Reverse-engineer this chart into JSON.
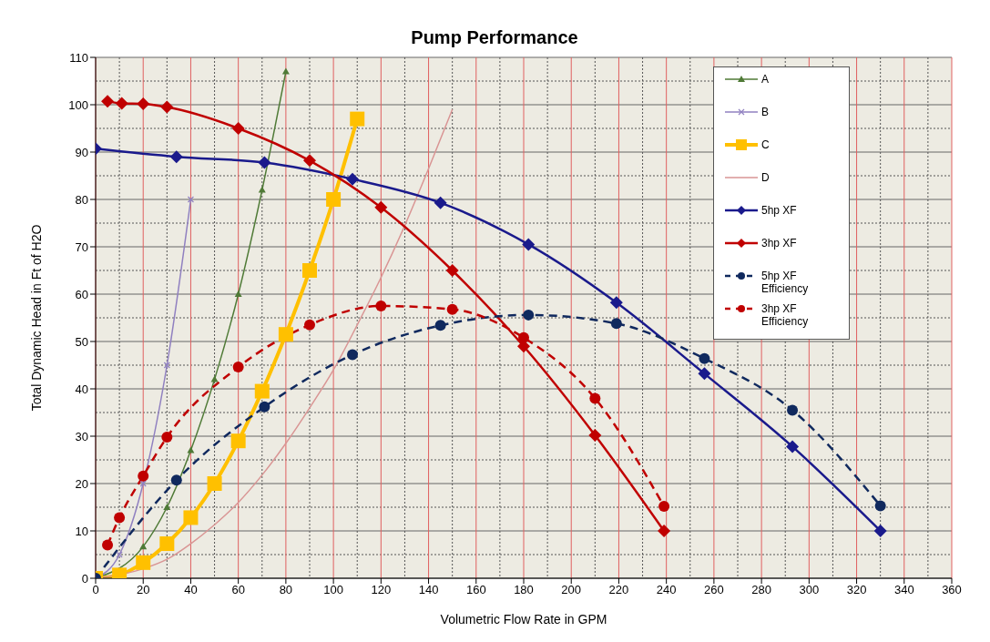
{
  "chart_data": {
    "type": "line",
    "title": "Pump Performance",
    "xlabel": "Volumetric Flow Rate in GPM",
    "ylabel": "Total Dynamic Head in Ft of H2O",
    "xlim": [
      0,
      360
    ],
    "xticks": [
      0,
      20,
      40,
      60,
      80,
      100,
      120,
      140,
      160,
      180,
      200,
      220,
      240,
      260,
      280,
      300,
      320,
      340,
      360
    ],
    "ylim": [
      0,
      110
    ],
    "yticks": [
      0,
      10,
      20,
      30,
      40,
      50,
      60,
      70,
      80,
      90,
      100,
      110
    ],
    "grid": true,
    "legend": "top right",
    "series": [
      {
        "name": "A",
        "color": "#4f7a36",
        "marker": "triangle",
        "line_style": "solid",
        "x": [
          0,
          20,
          30,
          40,
          50,
          60,
          70,
          80
        ],
        "values": [
          0,
          6.7,
          15,
          27,
          42,
          60,
          82,
          107
        ]
      },
      {
        "name": "B",
        "color": "#9080c0",
        "marker": "cross",
        "line_style": "solid",
        "x": [
          0,
          10,
          20,
          30,
          40
        ],
        "values": [
          0,
          5,
          20,
          45,
          80
        ]
      },
      {
        "name": "C",
        "color": "#ffc000",
        "marker": "square",
        "line_style": "solid",
        "x": [
          0,
          10,
          20,
          30,
          40,
          50,
          60,
          70,
          80,
          90,
          100,
          110
        ],
        "values": [
          0,
          0.7,
          3.3,
          7.3,
          12.8,
          20,
          29,
          39.5,
          51.5,
          65,
          80,
          97
        ]
      },
      {
        "name": "D",
        "color": "#d99594",
        "marker": "none",
        "line_style": "solid",
        "x": [
          0,
          20,
          30,
          40,
          50,
          60,
          70,
          80,
          90,
          100,
          110,
          120,
          130,
          140,
          150
        ],
        "values": [
          0,
          2,
          4,
          7.3,
          11.3,
          16,
          21.8,
          28.5,
          36,
          44,
          53.5,
          63.5,
          74.5,
          86.5,
          99
        ]
      },
      {
        "name": "5hp XF",
        "color": "#1a1a8c",
        "marker": "diamond",
        "line_style": "solid",
        "x": [
          0,
          34,
          71,
          108,
          145,
          182,
          219,
          256,
          293,
          330
        ],
        "values": [
          90.7,
          89,
          87.8,
          84.3,
          79.3,
          70.5,
          58.2,
          43.2,
          27.8,
          10
        ]
      },
      {
        "name": "3hp XF",
        "color": "#c00000",
        "marker": "diamond",
        "line_style": "solid",
        "x": [
          5,
          11,
          20,
          30,
          60,
          90,
          120,
          150,
          180,
          210,
          239
        ],
        "values": [
          100.7,
          100.3,
          100.2,
          99.5,
          95,
          88.2,
          78.3,
          65,
          49,
          30.2,
          10
        ]
      },
      {
        "name": "5hp XF Efficiency",
        "color": "#10295e",
        "marker": "circle",
        "line_style": "dashed",
        "x": [
          0,
          34,
          71,
          108,
          145,
          182,
          219,
          256,
          293,
          330
        ],
        "values": [
          0,
          20.7,
          36.2,
          47.2,
          53.4,
          55.6,
          53.8,
          46.4,
          35.5,
          15.3
        ]
      },
      {
        "name": "3hp XF Efficiency",
        "color": "#c00000",
        "marker": "circle",
        "line_style": "dashed",
        "x": [
          5,
          10,
          20,
          30,
          60,
          90,
          120,
          150,
          180,
          210,
          239
        ],
        "values": [
          7,
          12.8,
          21.6,
          29.8,
          44.6,
          53.5,
          57.5,
          56.8,
          50.8,
          38,
          15.2
        ]
      }
    ]
  }
}
